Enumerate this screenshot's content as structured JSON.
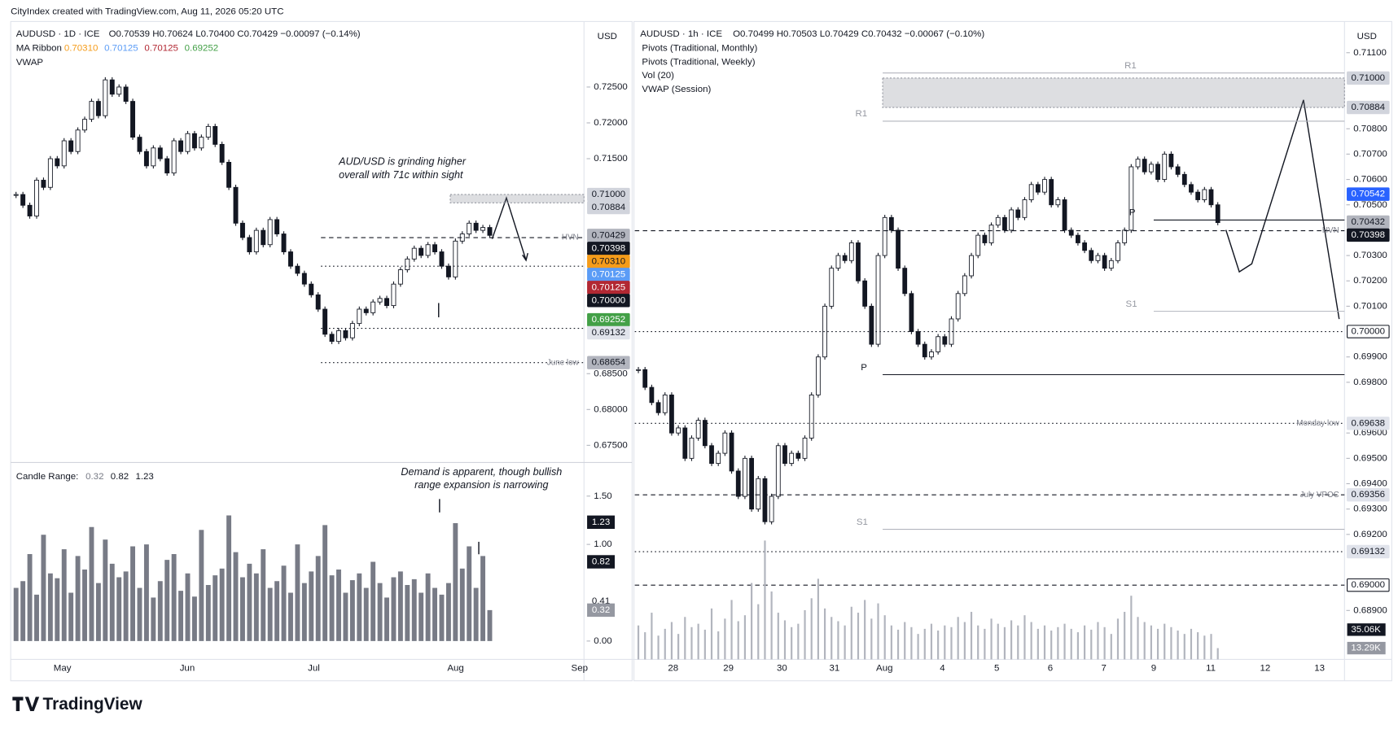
{
  "header": "CityIndex created with TradingView.com, Aug 11, 2026 05:20 UTC",
  "footer": "TradingView",
  "left": {
    "symbol": "AUDUSD · 1D · ICE",
    "ohlc": "O0.70539 H0.70624 L0.70400 C0.70429 −0.00097 (−0.14%)",
    "ribbon_label": "MA Ribbon",
    "ribbon_values": [
      "0.70310",
      "0.70125",
      "0.70125",
      "0.69252"
    ],
    "ribbon_colors": [
      "#f59c1a",
      "#5b9cf6",
      "#b22833",
      "#43a047"
    ],
    "vwap": "VWAP",
    "currency": "USD",
    "type": "candlestick",
    "ylim": [
      0.6731,
      0.7334
    ],
    "yticks": [
      {
        "value": 0.725,
        "label": "0.72500"
      },
      {
        "value": 0.72,
        "label": "0.72000"
      },
      {
        "value": 0.715,
        "label": "0.71500"
      },
      {
        "value": 0.685,
        "label": "0.68500"
      },
      {
        "value": 0.68,
        "label": "0.68000"
      },
      {
        "value": 0.675,
        "label": "0.67500"
      }
    ],
    "closes": [
      0.71,
      0.7085,
      0.707,
      0.712,
      0.711,
      0.715,
      0.714,
      0.7175,
      0.716,
      0.719,
      0.7205,
      0.723,
      0.721,
      0.726,
      0.724,
      0.725,
      0.723,
      0.718,
      0.716,
      0.714,
      0.7165,
      0.715,
      0.713,
      0.7175,
      0.716,
      0.7185,
      0.7165,
      0.718,
      0.7195,
      0.717,
      0.7145,
      0.711,
      0.706,
      0.704,
      0.702,
      0.705,
      0.703,
      0.7065,
      0.7045,
      0.702,
      0.7,
      0.699,
      0.6975,
      0.696,
      0.694,
      0.6905,
      0.6895,
      0.691,
      0.69,
      0.692,
      0.694,
      0.6935,
      0.695,
      0.6955,
      0.6945,
      0.6975,
      0.6995,
      0.701,
      0.7025,
      0.7015,
      0.703,
      0.702,
      0.7,
      0.6985,
      0.7035,
      0.7045,
      0.706,
      0.705,
      0.7054,
      0.7043
    ],
    "badges": [
      {
        "value": 0.71,
        "label": "0.71000",
        "bg": "#d1d4dc",
        "fg": "#131722"
      },
      {
        "value": 0.70884,
        "label": "0.70884",
        "bg": "#d1d4dc",
        "fg": "#131722"
      },
      {
        "value": 0.70429,
        "label": "0.70429",
        "bg": "#b2b5be",
        "fg": "#131722"
      },
      {
        "value": 0.70398,
        "label": "0.70398",
        "bg": "#131722",
        "fg": "#ffffff",
        "line": "dashed",
        "tag": "HVN"
      },
      {
        "value": 0.7031,
        "label": "0.70310",
        "bg": "#f59c1a",
        "fg": "#131722"
      },
      {
        "value": 0.70125,
        "label": "0.70125",
        "bg": "#5b9cf6",
        "fg": "#ffffff"
      },
      {
        "value": 0.70125,
        "label": "0.70125",
        "bg": "#b22833",
        "fg": "#ffffff"
      },
      {
        "value": 0.7,
        "label": "0.70000",
        "bg": "#131722",
        "fg": "#ffffff",
        "line": "dotted"
      },
      {
        "value": 0.69252,
        "label": "0.69252",
        "bg": "#43a047",
        "fg": "#ffffff"
      },
      {
        "value": 0.69132,
        "label": "0.69132",
        "bg": "#e0e3eb",
        "fg": "#131722",
        "line": "dotted"
      },
      {
        "value": 0.68654,
        "label": "0.68654",
        "bg": "#b2b5be",
        "fg": "#131722",
        "line": "dotted",
        "tag": "June low"
      }
    ],
    "annotations": [
      "AUD/USD is grinding higher",
      "overall with 71c within sight"
    ],
    "xlabels": [
      "May",
      "Jun",
      "Jul",
      "Aug",
      "Sep"
    ],
    "range": {
      "title": "Candle Range:",
      "legend": [
        "0.32",
        "0.82",
        "1.23"
      ],
      "ylim": [
        -0.19,
        1.82
      ],
      "yticks": [
        {
          "value": 1.5,
          "label": "1.50"
        },
        {
          "value": 1,
          "label": "1.00"
        },
        {
          "value": 0,
          "label": "0.00"
        }
      ],
      "values": [
        0.55,
        0.62,
        0.9,
        0.48,
        1.1,
        0.7,
        0.65,
        0.95,
        0.5,
        0.88,
        0.74,
        1.18,
        0.6,
        1.05,
        0.8,
        0.66,
        0.72,
        0.98,
        0.55,
        1.0,
        0.45,
        0.62,
        0.84,
        0.9,
        0.52,
        0.7,
        0.46,
        1.15,
        0.58,
        0.68,
        0.75,
        1.3,
        0.92,
        0.66,
        0.8,
        0.7,
        0.95,
        0.55,
        0.62,
        0.78,
        0.5,
        1.0,
        0.6,
        0.72,
        0.88,
        1.2,
        0.68,
        0.74,
        0.5,
        0.63,
        0.7,
        0.55,
        0.82,
        0.6,
        0.45,
        0.66,
        0.72,
        0.58,
        0.64,
        0.5,
        0.7,
        0.55,
        0.48,
        0.6,
        1.22,
        0.75,
        0.98,
        0.55,
        0.88,
        0.32
      ],
      "badges": [
        {
          "value": 1.23,
          "label": "1.23",
          "bg": "#131722",
          "fg": "#ffffff"
        },
        {
          "value": 0.82,
          "label": "0.82",
          "bg": "#131722",
          "fg": "#ffffff"
        },
        {
          "value": 0.41,
          "label": "0.41",
          "bg": "#ffffff",
          "fg": "#131722"
        },
        {
          "value": 0.32,
          "label": "0.32",
          "bg": "#9598a1",
          "fg": "#ffffff"
        }
      ],
      "annotations": [
        "Demand is apparent, though bullish",
        "range expansion is narrowing"
      ]
    }
  },
  "right": {
    "symbol": "AUDUSD · 1h · ICE",
    "ohlc": "O0.70499 H0.70503 L0.70429 C0.70432 −0.00067 (−0.10%)",
    "studies": [
      "Pivots (Traditional, Monthly)",
      "Pivots (Traditional, Weekly)",
      "Vol (20)",
      "VWAP (Session)"
    ],
    "currency": "USD",
    "type": "candlestick",
    "ylim": [
      0.68707,
      0.71202
    ],
    "yticks": [
      {
        "value": 0.711,
        "label": "0.71100"
      },
      {
        "value": 0.708,
        "label": "0.70800"
      },
      {
        "value": 0.707,
        "label": "0.70700"
      },
      {
        "value": 0.706,
        "label": "0.70600"
      },
      {
        "value": 0.705,
        "label": "0.70500"
      },
      {
        "value": 0.703,
        "label": "0.70300"
      },
      {
        "value": 0.702,
        "label": "0.70200"
      },
      {
        "value": 0.701,
        "label": "0.70100"
      },
      {
        "value": 0.699,
        "label": "0.69900"
      },
      {
        "value": 0.698,
        "label": "0.69800"
      },
      {
        "value": 0.696,
        "label": "0.69600"
      },
      {
        "value": 0.695,
        "label": "0.69500"
      },
      {
        "value": 0.694,
        "label": "0.69400"
      },
      {
        "value": 0.693,
        "label": "0.69300"
      },
      {
        "value": 0.692,
        "label": "0.69200"
      },
      {
        "value": 0.689,
        "label": "0.68900"
      }
    ],
    "closes": [
      0.6985,
      0.6978,
      0.6972,
      0.6968,
      0.6975,
      0.696,
      0.6962,
      0.695,
      0.6958,
      0.6965,
      0.6955,
      0.6948,
      0.6952,
      0.696,
      0.6945,
      0.6935,
      0.695,
      0.693,
      0.6942,
      0.6925,
      0.6935,
      0.6955,
      0.6948,
      0.6952,
      0.695,
      0.6958,
      0.6975,
      0.699,
      0.701,
      0.7025,
      0.703,
      0.7028,
      0.7035,
      0.702,
      0.701,
      0.6995,
      0.703,
      0.7045,
      0.704,
      0.7025,
      0.7015,
      0.7,
      0.6995,
      0.699,
      0.6992,
      0.6998,
      0.6995,
      0.7005,
      0.7015,
      0.7022,
      0.703,
      0.7038,
      0.7035,
      0.7042,
      0.7045,
      0.704,
      0.7048,
      0.7045,
      0.7052,
      0.7058,
      0.7055,
      0.706,
      0.705,
      0.7052,
      0.704,
      0.7038,
      0.7035,
      0.7032,
      0.7028,
      0.703,
      0.7025,
      0.7028,
      0.7035,
      0.704,
      0.7065,
      0.7068,
      0.7063,
      0.7066,
      0.706,
      0.707,
      0.7065,
      0.7062,
      0.7058,
      0.7055,
      0.7052,
      0.7056,
      0.705,
      0.7043
    ],
    "vlim": [
      0,
      170
    ],
    "volume": [
      40,
      32,
      55,
      28,
      36,
      44,
      30,
      50,
      38,
      42,
      35,
      60,
      33,
      48,
      70,
      45,
      52,
      90,
      65,
      140,
      80,
      55,
      46,
      38,
      42,
      58,
      72,
      95,
      60,
      50,
      45,
      40,
      62,
      55,
      70,
      48,
      66,
      52,
      40,
      35,
      44,
      38,
      30,
      36,
      42,
      34,
      40,
      38,
      50,
      44,
      56,
      40,
      36,
      48,
      42,
      38,
      46,
      40,
      52,
      44,
      36,
      40,
      34,
      38,
      42,
      36,
      32,
      40,
      35,
      44,
      38,
      30,
      48,
      56,
      75,
      50,
      44,
      40,
      36,
      42,
      38,
      34,
      30,
      36,
      32,
      28,
      30,
      13.29
    ],
    "badges": [
      {
        "value": 0.71,
        "label": "0.71000",
        "bg": "#d1d4dc",
        "fg": "#131722"
      },
      {
        "value": 0.70884,
        "label": "0.70884",
        "bg": "#d1d4dc",
        "fg": "#131722"
      },
      {
        "value": 0.70542,
        "label": "0.70542",
        "bg": "#2962ff",
        "fg": "#ffffff"
      },
      {
        "value": 0.70432,
        "label": "0.70432",
        "bg": "#b2b5be",
        "fg": "#131722"
      },
      {
        "value": 0.70398,
        "label": "0.70398",
        "bg": "#131722",
        "fg": "#ffffff",
        "line": "dashed",
        "tag": "HVN"
      },
      {
        "value": 0.7,
        "label": "0.70000",
        "bg": "#ffffff",
        "fg": "#131722",
        "line": "dotted"
      },
      {
        "value": 0.69638,
        "label": "0.69638",
        "bg": "#e0e3eb",
        "fg": "#131722",
        "line": "dotted",
        "tag": "Monday low"
      },
      {
        "value": 0.69356,
        "label": "0.69356",
        "bg": "#e0e3eb",
        "fg": "#131722",
        "line": "dashed",
        "tag": "July VPOC"
      },
      {
        "value": 0.69132,
        "label": "0.69132",
        "bg": "#e0e3eb",
        "fg": "#131722",
        "line": "dotted"
      },
      {
        "value": 0.69,
        "label": "0.69000",
        "bg": "#ffffff",
        "fg": "#131722",
        "line": "dashed"
      }
    ],
    "pivots": [
      {
        "label": "R1",
        "value": 0.7102
      },
      {
        "label": "R1",
        "value": 0.7083
      },
      {
        "label": "P",
        "value": 0.6983
      },
      {
        "label": "P",
        "value": 0.7044
      },
      {
        "label": "S1",
        "value": 0.6922
      },
      {
        "label": "S1",
        "value": 0.7008
      }
    ],
    "vol_badges": [
      {
        "value": 35.06,
        "label": "35.06K",
        "bg": "#131722",
        "fg": "#ffffff"
      },
      {
        "value": 13.29,
        "label": "13.29K",
        "bg": "#9598a1",
        "fg": "#ffffff"
      }
    ],
    "xlabels": [
      "28",
      "29",
      "30",
      "31",
      "Aug",
      "4",
      "5",
      "6",
      "7",
      "9",
      "11",
      "12",
      "13"
    ]
  }
}
